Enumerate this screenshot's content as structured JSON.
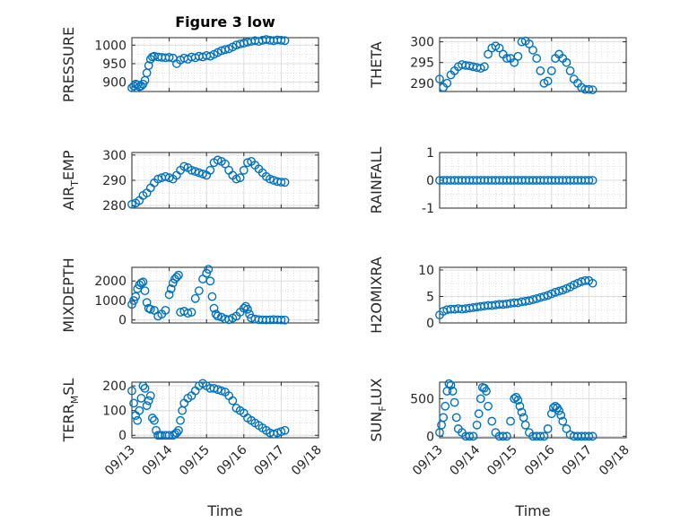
{
  "title": "Figure 3 low",
  "marker_color": "#0072BD",
  "xlabel": "Time",
  "x_ticks": [
    "09/13",
    "09/14",
    "09/15",
    "09/16",
    "09/17",
    "09/18"
  ],
  "chart_data": [
    {
      "type": "scatter",
      "ylabel": "PRESSURE",
      "xlim": [
        "09/13",
        "09/18"
      ],
      "ylim": [
        875,
        1020
      ],
      "y_ticks": [
        "900",
        "950",
        "1000"
      ],
      "grid": true,
      "x": [
        0,
        0.05,
        0.1,
        0.15,
        0.2,
        0.25,
        0.3,
        0.35,
        0.4,
        0.45,
        0.5,
        0.55,
        0.6,
        0.7,
        0.8,
        0.9,
        1.0,
        1.1,
        1.2,
        1.3,
        1.4,
        1.5,
        1.6,
        1.7,
        1.8,
        1.9,
        2.0,
        2.1,
        2.2,
        2.3,
        2.4,
        2.5,
        2.6,
        2.7,
        2.8,
        2.9,
        3.0,
        3.1,
        3.2,
        3.3,
        3.4,
        3.5,
        3.6,
        3.7,
        3.8,
        3.9,
        4.0,
        4.1
      ],
      "y": [
        885,
        890,
        895,
        893,
        888,
        890,
        895,
        905,
        925,
        945,
        962,
        968,
        970,
        968,
        967,
        966,
        967,
        965,
        950,
        960,
        965,
        962,
        968,
        966,
        970,
        968,
        972,
        970,
        975,
        980,
        985,
        988,
        990,
        995,
        1000,
        1003,
        1005,
        1008,
        1010,
        1012,
        1010,
        1013,
        1015,
        1013,
        1012,
        1014,
        1013,
        1012
      ]
    },
    {
      "type": "scatter",
      "ylabel": "THETA",
      "xlim": [
        "09/13",
        "09/18"
      ],
      "ylim": [
        288,
        301
      ],
      "y_ticks": [
        "290",
        "295",
        "300"
      ],
      "grid": true,
      "x": [
        0,
        0.1,
        0.2,
        0.3,
        0.4,
        0.5,
        0.6,
        0.7,
        0.8,
        0.9,
        1.0,
        1.1,
        1.2,
        1.3,
        1.4,
        1.5,
        1.6,
        1.7,
        1.8,
        1.9,
        2.0,
        2.1,
        2.2,
        2.3,
        2.4,
        2.5,
        2.6,
        2.7,
        2.8,
        2.9,
        3.0,
        3.1,
        3.2,
        3.3,
        3.4,
        3.5,
        3.6,
        3.7,
        3.8,
        3.9,
        4.0,
        4.1
      ],
      "y": [
        291,
        289,
        290,
        292,
        293,
        294,
        294.5,
        294.3,
        294.2,
        294,
        293.8,
        293.6,
        294,
        297,
        298.5,
        299,
        298.5,
        297,
        296,
        296,
        295,
        296.5,
        300,
        300.2,
        299.5,
        298,
        296,
        293,
        290,
        290.5,
        293,
        296,
        297,
        296,
        295,
        293,
        291,
        290,
        289,
        288.5,
        288.5,
        288.4
      ]
    },
    {
      "type": "scatter",
      "ylabel": "AIR",
      "ylabel_sub": "T",
      "ylabel_tail": "EMP",
      "xlim": [
        "09/13",
        "09/18"
      ],
      "ylim": [
        279,
        301
      ],
      "y_ticks": [
        "280",
        "290",
        "300"
      ],
      "grid": true,
      "x": [
        0,
        0.1,
        0.2,
        0.3,
        0.4,
        0.5,
        0.6,
        0.7,
        0.8,
        0.9,
        1.0,
        1.1,
        1.2,
        1.3,
        1.4,
        1.5,
        1.6,
        1.7,
        1.8,
        1.9,
        2.0,
        2.1,
        2.2,
        2.3,
        2.4,
        2.5,
        2.6,
        2.7,
        2.8,
        2.9,
        3.0,
        3.1,
        3.2,
        3.3,
        3.4,
        3.5,
        3.6,
        3.7,
        3.8,
        3.9,
        4.0,
        4.1
      ],
      "y": [
        280.5,
        281,
        282,
        284,
        285,
        287,
        289,
        290.5,
        291,
        291.5,
        291,
        290.5,
        292,
        294,
        295.5,
        295,
        294,
        293.5,
        293,
        292.5,
        292,
        294,
        297,
        298,
        297.5,
        296.5,
        294,
        292,
        290.5,
        291,
        294,
        297,
        297.5,
        296,
        294.5,
        293,
        291.5,
        290.5,
        290,
        289.5,
        289.3,
        289.2
      ]
    },
    {
      "type": "scatter",
      "ylabel": "RAINFALL",
      "xlim": [
        "09/13",
        "09/18"
      ],
      "ylim": [
        -1,
        1
      ],
      "y_ticks": [
        "-1",
        "0",
        "1"
      ],
      "grid": true,
      "x": [
        0,
        0.1,
        0.2,
        0.3,
        0.4,
        0.5,
        0.6,
        0.7,
        0.8,
        0.9,
        1.0,
        1.1,
        1.2,
        1.3,
        1.4,
        1.5,
        1.6,
        1.7,
        1.8,
        1.9,
        2.0,
        2.1,
        2.2,
        2.3,
        2.4,
        2.5,
        2.6,
        2.7,
        2.8,
        2.9,
        3.0,
        3.1,
        3.2,
        3.3,
        3.4,
        3.5,
        3.6,
        3.7,
        3.8,
        3.9,
        4.0,
        4.1
      ],
      "y": [
        0,
        0,
        0,
        0,
        0,
        0,
        0,
        0,
        0,
        0,
        0,
        0,
        0,
        0,
        0,
        0,
        0,
        0,
        0,
        0,
        0,
        0,
        0,
        0,
        0,
        0,
        0,
        0,
        0,
        0,
        0,
        0,
        0,
        0,
        0,
        0,
        0,
        0,
        0,
        0,
        0,
        0
      ]
    },
    {
      "type": "scatter",
      "ylabel": "MIXDEPTH",
      "xlim": [
        "09/13",
        "09/18"
      ],
      "ylim": [
        -150,
        2700
      ],
      "y_ticks": [
        "0",
        "1000",
        "2000"
      ],
      "grid": true,
      "x": [
        0,
        0.05,
        0.1,
        0.15,
        0.2,
        0.25,
        0.3,
        0.35,
        0.4,
        0.45,
        0.5,
        0.6,
        0.7,
        0.8,
        0.9,
        1.0,
        1.05,
        1.1,
        1.15,
        1.2,
        1.25,
        1.3,
        1.4,
        1.5,
        1.6,
        1.7,
        1.8,
        1.9,
        2.0,
        2.05,
        2.1,
        2.15,
        2.2,
        2.25,
        2.3,
        2.4,
        2.5,
        2.6,
        2.7,
        2.8,
        2.9,
        3.0,
        3.05,
        3.1,
        3.15,
        3.2,
        3.3,
        3.4,
        3.5,
        3.6,
        3.7,
        3.8,
        3.9,
        4.0,
        4.1
      ],
      "y": [
        800,
        1000,
        1200,
        1600,
        1800,
        1900,
        1950,
        1500,
        900,
        600,
        550,
        500,
        200,
        300,
        500,
        1300,
        1600,
        1900,
        2100,
        2200,
        2300,
        400,
        450,
        350,
        400,
        1100,
        1500,
        2100,
        2400,
        2600,
        2000,
        1200,
        600,
        300,
        200,
        150,
        50,
        20,
        100,
        200,
        400,
        600,
        700,
        550,
        300,
        100,
        50,
        20,
        10,
        5,
        10,
        20,
        10,
        5,
        0
      ]
    },
    {
      "type": "scatter",
      "ylabel": "H2OMIXRA",
      "xlim": [
        "09/13",
        "09/18"
      ],
      "ylim": [
        0,
        10.5
      ],
      "y_ticks": [
        "0",
        "5",
        "10"
      ],
      "grid": true,
      "x": [
        0,
        0.1,
        0.2,
        0.3,
        0.4,
        0.5,
        0.6,
        0.7,
        0.8,
        0.9,
        1.0,
        1.1,
        1.2,
        1.3,
        1.4,
        1.5,
        1.6,
        1.7,
        1.8,
        1.9,
        2.0,
        2.1,
        2.2,
        2.3,
        2.4,
        2.5,
        2.6,
        2.7,
        2.8,
        2.9,
        3.0,
        3.1,
        3.2,
        3.3,
        3.4,
        3.5,
        3.6,
        3.7,
        3.8,
        3.9,
        4.0,
        4.1
      ],
      "y": [
        1.5,
        2.2,
        2.5,
        2.6,
        2.6,
        2.7,
        2.6,
        2.7,
        2.8,
        2.9,
        3.0,
        3.1,
        3.2,
        3.3,
        3.3,
        3.4,
        3.5,
        3.5,
        3.6,
        3.7,
        3.8,
        3.8,
        4.0,
        4.1,
        4.2,
        4.4,
        4.6,
        4.8,
        5.0,
        5.2,
        5.5,
        5.8,
        6.0,
        6.2,
        6.5,
        6.8,
        7.2,
        7.5,
        7.8,
        8.0,
        8.0,
        7.5
      ]
    },
    {
      "type": "scatter",
      "ylabel": "TERR",
      "ylabel_sub": "M",
      "ylabel_tail": "SL",
      "xlim": [
        "09/13",
        "09/18"
      ],
      "ylim": [
        -10,
        215
      ],
      "y_ticks": [
        "0",
        "100",
        "200"
      ],
      "grid": true,
      "x": [
        0,
        0.05,
        0.1,
        0.15,
        0.2,
        0.25,
        0.3,
        0.35,
        0.4,
        0.45,
        0.5,
        0.55,
        0.6,
        0.65,
        0.7,
        0.75,
        0.8,
        0.9,
        1.0,
        1.1,
        1.15,
        1.2,
        1.25,
        1.3,
        1.35,
        1.4,
        1.5,
        1.6,
        1.7,
        1.8,
        1.9,
        2.0,
        2.1,
        2.2,
        2.3,
        2.4,
        2.5,
        2.6,
        2.7,
        2.8,
        2.9,
        3.0,
        3.1,
        3.2,
        3.3,
        3.4,
        3.5,
        3.6,
        3.7,
        3.8,
        3.9,
        4.0,
        4.1
      ],
      "y": [
        180,
        130,
        80,
        60,
        100,
        150,
        200,
        190,
        120,
        140,
        160,
        70,
        60,
        20,
        0,
        0,
        0,
        0,
        0,
        0,
        5,
        10,
        20,
        60,
        100,
        130,
        150,
        160,
        180,
        200,
        210,
        200,
        190,
        190,
        185,
        180,
        175,
        160,
        140,
        110,
        100,
        90,
        70,
        60,
        50,
        40,
        30,
        20,
        10,
        5,
        10,
        15,
        20
      ]
    },
    {
      "type": "scatter",
      "ylabel": "SUN",
      "ylabel_sub": "F",
      "ylabel_tail": "LUX",
      "xlim": [
        "09/13",
        "09/18"
      ],
      "ylim": [
        -20,
        720
      ],
      "y_ticks": [
        "0",
        "500"
      ],
      "grid": true,
      "x": [
        0,
        0.05,
        0.1,
        0.15,
        0.2,
        0.25,
        0.3,
        0.35,
        0.4,
        0.45,
        0.5,
        0.6,
        0.7,
        0.8,
        0.9,
        1.0,
        1.05,
        1.1,
        1.15,
        1.2,
        1.25,
        1.3,
        1.4,
        1.5,
        1.6,
        1.7,
        1.8,
        1.9,
        2.0,
        2.05,
        2.1,
        2.15,
        2.2,
        2.25,
        2.3,
        2.4,
        2.5,
        2.6,
        2.7,
        2.8,
        2.9,
        3.0,
        3.05,
        3.1,
        3.15,
        3.2,
        3.25,
        3.3,
        3.4,
        3.5,
        3.6,
        3.7,
        3.8,
        3.9,
        4.0,
        4.1
      ],
      "y": [
        50,
        150,
        250,
        400,
        600,
        700,
        680,
        600,
        450,
        250,
        100,
        50,
        0,
        0,
        0,
        150,
        300,
        500,
        650,
        640,
        600,
        400,
        200,
        50,
        0,
        0,
        0,
        200,
        500,
        520,
        480,
        400,
        320,
        250,
        150,
        50,
        0,
        0,
        0,
        0,
        100,
        300,
        380,
        400,
        380,
        340,
        280,
        200,
        100,
        20,
        0,
        0,
        0,
        0,
        0,
        0
      ]
    }
  ]
}
